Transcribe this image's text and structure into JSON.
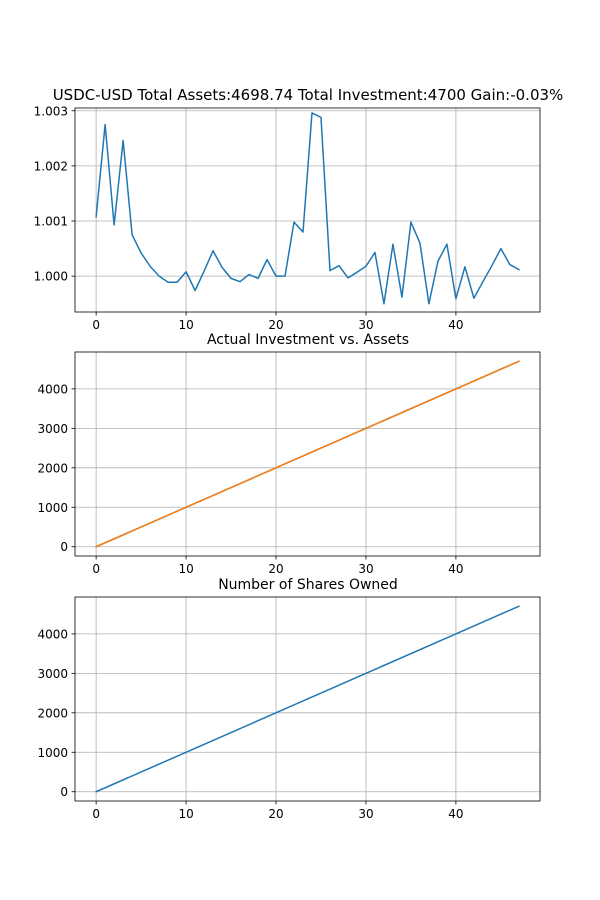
{
  "chart_data": [
    {
      "type": "line",
      "title": "USDC-USD Total Assets:4698.74  Total Investment:4700  Gain:-0.03%",
      "xlabel": "",
      "ylabel": "",
      "xlim": [
        -2.35,
        49.35
      ],
      "ylim": [
        0.99935,
        1.00305
      ],
      "xticks": [
        0,
        10,
        20,
        30,
        40
      ],
      "yticks": [
        1.0,
        1.001,
        1.002,
        1.003
      ],
      "ytick_labels": [
        "1.000",
        "1.001",
        "1.002",
        "1.003"
      ],
      "grid": true,
      "colors": [
        "#1f77b4"
      ],
      "series": [
        {
          "x": [
            0,
            1,
            2,
            3,
            4,
            5,
            6,
            7,
            8,
            9,
            10,
            11,
            12,
            13,
            14,
            15,
            16,
            17,
            18,
            19,
            20,
            21,
            22,
            23,
            24,
            25,
            26,
            27,
            28,
            29,
            30,
            31,
            32,
            33,
            34,
            35,
            36,
            37,
            38,
            39,
            40,
            41,
            42,
            43,
            44,
            45,
            46,
            47
          ],
          "values": [
            1.00108,
            1.00275,
            1.00093,
            1.00246,
            1.00075,
            1.00042,
            1.00018,
            1.0,
            0.99989,
            0.99989,
            1.00008,
            0.99974,
            1.00009,
            1.00046,
            1.00016,
            0.99996,
            0.9999,
            1.00003,
            0.99996,
            1.0003,
            1.0,
            1.0,
            1.00098,
            1.0008,
            1.00296,
            1.00288,
            1.0001,
            1.00019,
            0.99997,
            1.00007,
            1.00018,
            1.00043,
            0.9995,
            1.00058,
            0.99962,
            1.00098,
            1.0006,
            0.9995,
            1.00027,
            1.00058,
            0.99959,
            1.00017,
            0.9996,
            0.9999,
            1.00019,
            1.0005,
            1.00021,
            1.00012
          ]
        }
      ]
    },
    {
      "type": "line",
      "title": "Actual Investment vs. Assets",
      "xlabel": "",
      "ylabel": "",
      "xlim": [
        -2.35,
        49.35
      ],
      "ylim": [
        -235,
        4935
      ],
      "xticks": [
        0,
        10,
        20,
        30,
        40
      ],
      "yticks": [
        0,
        1000,
        2000,
        3000,
        4000
      ],
      "grid": true,
      "colors": [
        "#1f77b4",
        "#ff7f0e"
      ],
      "series": [
        {
          "x": [
            0,
            47
          ],
          "values": [
            0,
            4700
          ]
        },
        {
          "x": [
            0,
            47
          ],
          "values": [
            0,
            4698.74
          ]
        }
      ]
    },
    {
      "type": "line",
      "title": "Number of Shares Owned",
      "xlabel": "",
      "ylabel": "",
      "xlim": [
        -2.35,
        49.35
      ],
      "ylim": [
        -235,
        4935
      ],
      "xticks": [
        0,
        10,
        20,
        30,
        40
      ],
      "yticks": [
        0,
        1000,
        2000,
        3000,
        4000
      ],
      "grid": true,
      "colors": [
        "#1f77b4"
      ],
      "series": [
        {
          "x": [
            0,
            47
          ],
          "values": [
            0,
            4700
          ]
        }
      ]
    }
  ]
}
